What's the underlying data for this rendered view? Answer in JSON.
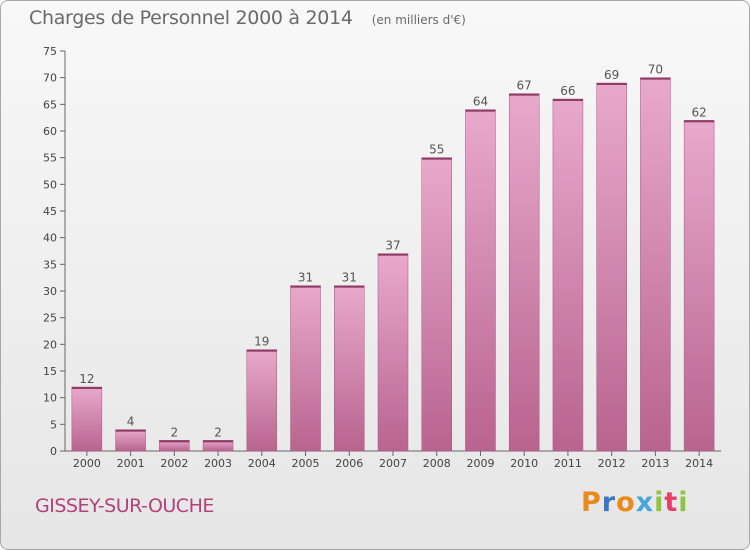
{
  "header": {
    "title": "Charges de Personnel 2000 à 2014",
    "subtitle": "(en milliers d'€)"
  },
  "footer": {
    "commune": "GISSEY-SUR-OUCHE",
    "logo_letters": [
      "P",
      "r",
      "o",
      "x",
      "i",
      "t",
      "i"
    ]
  },
  "chart_data": {
    "type": "bar",
    "title": "Charges de Personnel 2000 à 2014",
    "subtitle": "(en milliers d'€)",
    "xlabel": "",
    "ylabel": "",
    "categories": [
      "2000",
      "2001",
      "2002",
      "2003",
      "2004",
      "2005",
      "2006",
      "2007",
      "2008",
      "2009",
      "2010",
      "2011",
      "2012",
      "2013",
      "2014"
    ],
    "values": [
      12,
      4,
      2,
      2,
      19,
      31,
      31,
      37,
      55,
      64,
      67,
      66,
      69,
      70,
      62
    ],
    "ylim": [
      0,
      75
    ],
    "yticks": [
      0,
      5,
      10,
      15,
      20,
      25,
      30,
      35,
      40,
      45,
      50,
      55,
      60,
      65,
      70,
      75
    ],
    "grid": false,
    "bar_color": "#c9689e",
    "bar_color_light": "#e8a9cc"
  }
}
